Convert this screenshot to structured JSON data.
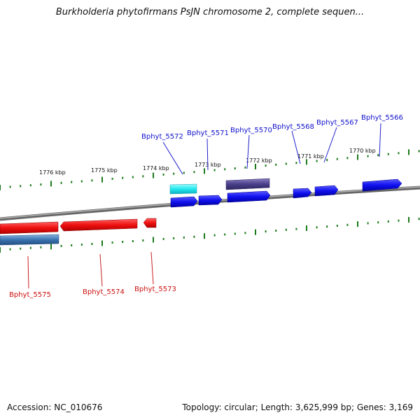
{
  "title": "Burkholderia phytofirmans PsJN chromosome 2, complete sequen...",
  "footer": {
    "accession": "Accession: NC_010676",
    "summary": "Topology: circular; Length: 3,625,999 bp; Genes: 3,169"
  },
  "colors": {
    "forward_gene": "#1010ee",
    "reverse_gene": "#ee1010",
    "forward_label": "#1010cc",
    "reverse_label": "#cc1010",
    "highlight_cyan": "#22e8ee",
    "highlight_slate": "#4a3f8a",
    "highlight_steel": "#3a73b0",
    "tick": "#1a7a1a",
    "backbone": "#8a8a8a"
  },
  "scale_labels": [
    "1776 kbp",
    "1775 kbp",
    "1774 kbp",
    "1773 kbp",
    "1772 kbp",
    "1771 kbp",
    "1770 kbp"
  ],
  "genes": {
    "forward": [
      "Bphyt_5572",
      "Bphyt_5571",
      "Bphyt_5570",
      "Bphyt_5568",
      "Bphyt_5567",
      "Bphyt_5566"
    ],
    "reverse": [
      "Bphyt_5575",
      "Bphyt_5574",
      "Bphyt_5573"
    ]
  }
}
